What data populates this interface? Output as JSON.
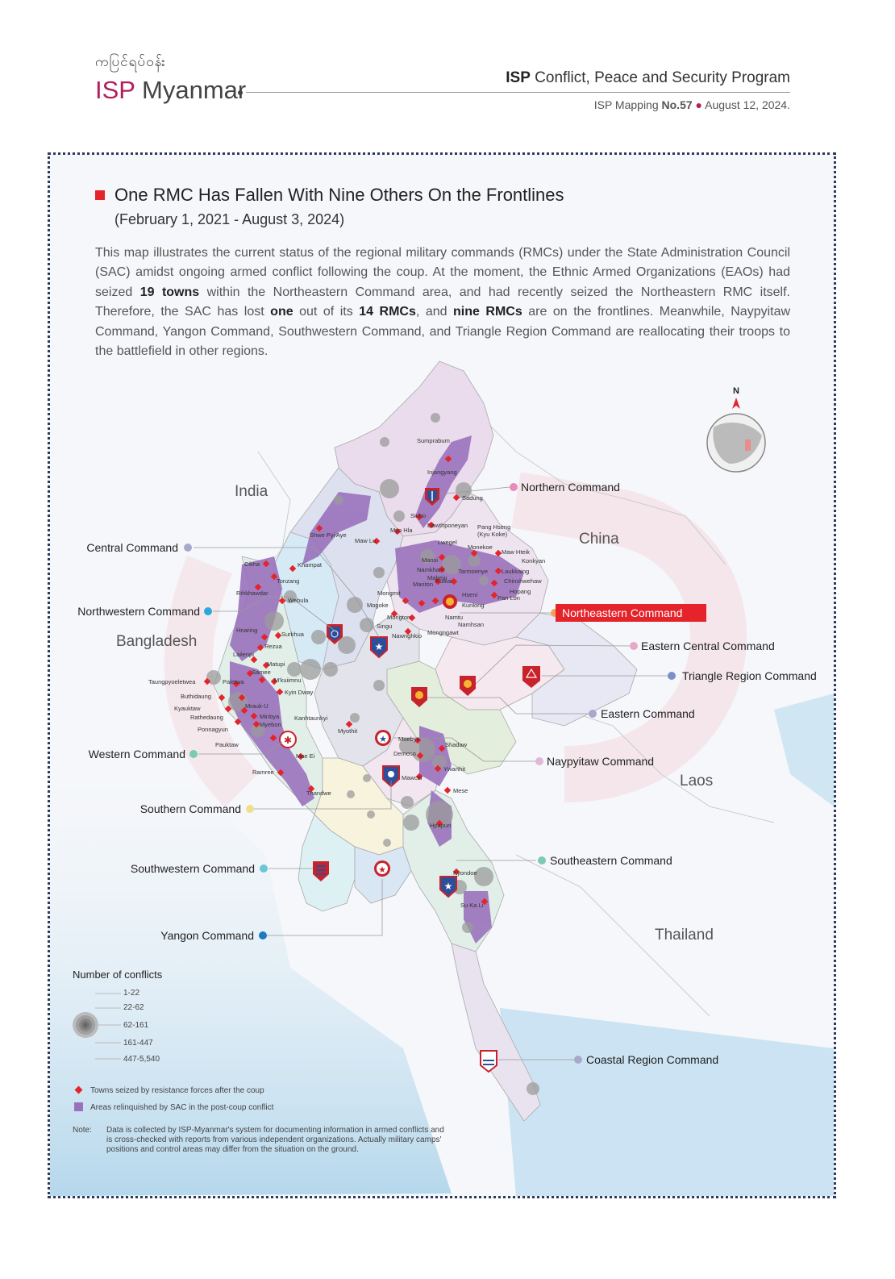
{
  "header": {
    "logo_burmese": "ကပြင်ရပ်ဝန်း",
    "logo_isp": "ISP",
    "logo_name": " Myanmar",
    "program_bold": "ISP",
    "program_rest": " Conflict, Peace and Security Program",
    "mapping_prefix": "ISP Mapping ",
    "mapping_no": "No.57",
    "mapping_date": "August 12, 2024."
  },
  "title": "One RMC Has Fallen With Nine Others On the Frontlines",
  "subtitle": "(February 1, 2021 - August 3, 2024)",
  "description": {
    "p1": "This map illustrates the current status of the regional military commands (RMCs) under the State Administration Council (SAC) amidst ongoing armed conflict following the coup. At the moment, the Ethnic Armed Organizations (EAOs) had seized ",
    "b1": "19 towns",
    "p2": " within the Northeastern Command area, and had recently seized the Northeastern RMC itself. Therefore, the SAC has lost ",
    "b2": "one",
    "p3": " out of its ",
    "b3": "14 RMCs",
    "p4": ", and ",
    "b4": "nine RMCs",
    "p5": " are on the frontlines. Meanwhile, Naypyitaw Command, Yangon Command, Southwestern Command, and Triangle Region Command are reallocating their troops to the battlefield in other regions."
  },
  "countries": {
    "india": "India",
    "china": "China",
    "bangladesh": "Bangladesh",
    "laos": "Laos",
    "thailand": "Thailand"
  },
  "compass": "N",
  "commands": {
    "northern": "Northern Command",
    "central": "Central Command",
    "northwestern": "Northwestern Command",
    "northeastern": "Northeastern Command",
    "eastern_central": "Eastern Central Command",
    "triangle": "Triangle Region Command",
    "eastern": "Eastern Command",
    "western": "Western Command",
    "naypyitaw": "Naypyitaw Command",
    "southern": "Southern Command",
    "southeastern": "Southeastern Command",
    "southwestern": "Southwestern Command",
    "yangon": "Yangon Command",
    "coastal": "Coastal Region Command"
  },
  "command_colors": {
    "northern": "#e68cb8",
    "central": "#a8a8cc",
    "northwestern": "#29a8e0",
    "northeastern": "#f5a05a",
    "eastern_central": "#e8a8cc",
    "triangle": "#7b8fc8",
    "eastern": "#a8a8cc",
    "western": "#7ccab0",
    "naypyitaw": "#e0b8d8",
    "southern": "#f0e08a",
    "southeastern": "#7ccab0",
    "southwestern": "#6cc6d8",
    "yangon": "#1e7abf",
    "coastal": "#a8a8cc"
  },
  "towns": {
    "sumprabum": "Sumprabum",
    "injangyang": "Injangyang",
    "sadung": "Sadung",
    "sinbo": "Sinbo",
    "dawthponeyan": "Dawthponeyan",
    "myo_hla": "Myo Hla",
    "lwegel": "Lwegel",
    "shwe_pyi_aye": "Shwe Pyi Aye",
    "maw_lu": "Maw Lu",
    "pang_hseng": "Pang Hseng",
    "kyu_koke": "(Kyu Koke)",
    "monekoe": "Monekoe",
    "maw_hteik": "Maw Hteik",
    "konkyan": "Konkyan",
    "mansi": "Mansi",
    "namkham": "Namkham",
    "laukkaing": "Laukkaing",
    "tarmoenye": "Tarmoenye",
    "chinshwehaw": "Chinshwehaw",
    "mabein": "Mabein",
    "manton": "Manton",
    "kutkai": "Kutkai",
    "hopang": "Hopang",
    "hseni": "Hseni",
    "pan_lon": "Pan Lon",
    "mongmit": "Mongmit",
    "kunlong": "Kunlong",
    "mogoke": "Mogoke",
    "mongton": "Mongton",
    "namtu": "Namtu",
    "namhsan": "Namhsan",
    "singu": "Singu",
    "nawnghkio": "Nawnghkio",
    "mongngawt": "Mongngawt",
    "cikha": "Cikha",
    "khampat": "Khampat",
    "tonzang": "Tonzang",
    "rihkhawdar": "Rihkhawdar",
    "webula": "Webula",
    "hnaring": "Hnaring",
    "surkhua": "Surkhua",
    "rezua": "Rezua",
    "lailenpi": "Lailenpi",
    "matupi": "Matupi",
    "samee": "Samee",
    "taungpyoeletwea": "Taungpyoeletwea",
    "paletwa": "Paletwa",
    "mkuiimnu": "M'kuiimnu",
    "kyin_dway": "Kyin Dway",
    "buthidaung": "Buthidaung",
    "mrauk_u": "Mrauk-U",
    "kyauktaw": "Kyauktaw",
    "kanhtaunkyi": "Kanhtaunkyi",
    "rathedaung": "Rathedaung",
    "minbya": "Minbya",
    "myebon": "Myebon",
    "ponnagyun": "Ponnagyun",
    "myothit": "Myothit",
    "pauktaw": "Pauktaw",
    "mae_ei": "Mae Ei",
    "ramree": "Ramree",
    "thandwe": "Thandwe",
    "moebye": "Moebye",
    "shadaw": "Shadaw",
    "demoso": "Demoso",
    "ywarthit": "Ywarthit",
    "mawchi": "Mawchi",
    "mese": "Mese",
    "hpapun": "Hpapun",
    "kyondoe": "Kyondoe",
    "su_ka_li": "Su Ka Li"
  },
  "legend": {
    "title": "Number of conflicts",
    "ranges": [
      "1-22",
      "22-62",
      "62-161",
      "161-447",
      "447-5,540"
    ],
    "seized_label": "Towns seized by resistance forces after the coup",
    "relinquished_label": "Areas relinquished by SAC in the post-coup conflict",
    "seized_color": "#e4232b",
    "relinquished_color": "#9a72bc"
  },
  "note": {
    "label": "Note:",
    "text": "Data is collected by ISP-Myanmar's system for documenting information in armed conflicts and is cross-checked with reports from various independent organizations. Actually military camps' positions and control areas may differ from the situation on the ground."
  }
}
